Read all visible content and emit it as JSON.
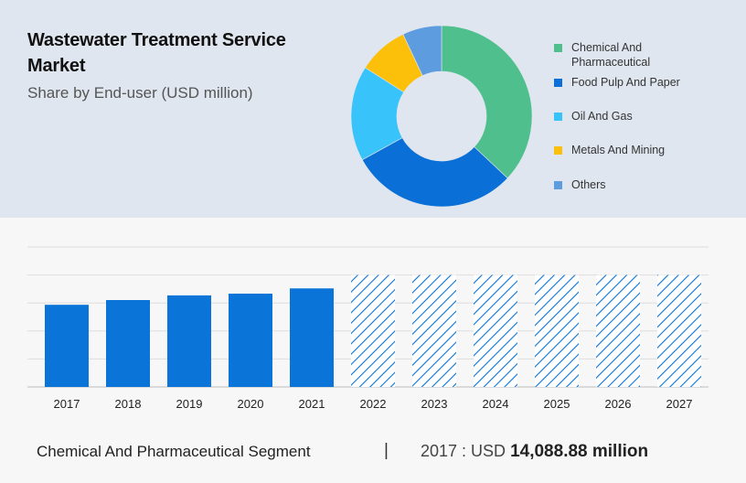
{
  "header": {
    "title": "Wastewater Treatment Service Market",
    "subtitle": "Share by End-user (USD million)"
  },
  "chart_data": [
    {
      "type": "pie",
      "style": "donut",
      "slices": [
        {
          "label": "Chemical And Pharmaceutical",
          "value": 37,
          "color": "#4fc08d"
        },
        {
          "label": "Food Pulp And Paper",
          "value": 30,
          "color": "#0a6fd6"
        },
        {
          "label": "Oil And Gas",
          "value": 17,
          "color": "#38c4fb"
        },
        {
          "label": "Metals And Mining",
          "value": 9,
          "color": "#fcc00a"
        },
        {
          "label": "Others",
          "value": 7,
          "color": "#5d9cde"
        }
      ],
      "legend_position": "right"
    },
    {
      "type": "bar",
      "categories": [
        "2017",
        "2018",
        "2019",
        "2020",
        "2021",
        "2022",
        "2023",
        "2024",
        "2025",
        "2026",
        "2027"
      ],
      "values": [
        14088.88,
        14900,
        15700,
        16000,
        16900,
        19200,
        19200,
        19200,
        19200,
        19200,
        19200
      ],
      "forecast_from": "2022",
      "ylim": [
        0,
        24000
      ],
      "grid": true,
      "color": "#0a74d9"
    }
  ],
  "footer": {
    "segment": "Chemical And Pharmaceutical Segment",
    "divider": "|",
    "value_prefix": "2017 : USD",
    "value": "14,088.88 million"
  }
}
